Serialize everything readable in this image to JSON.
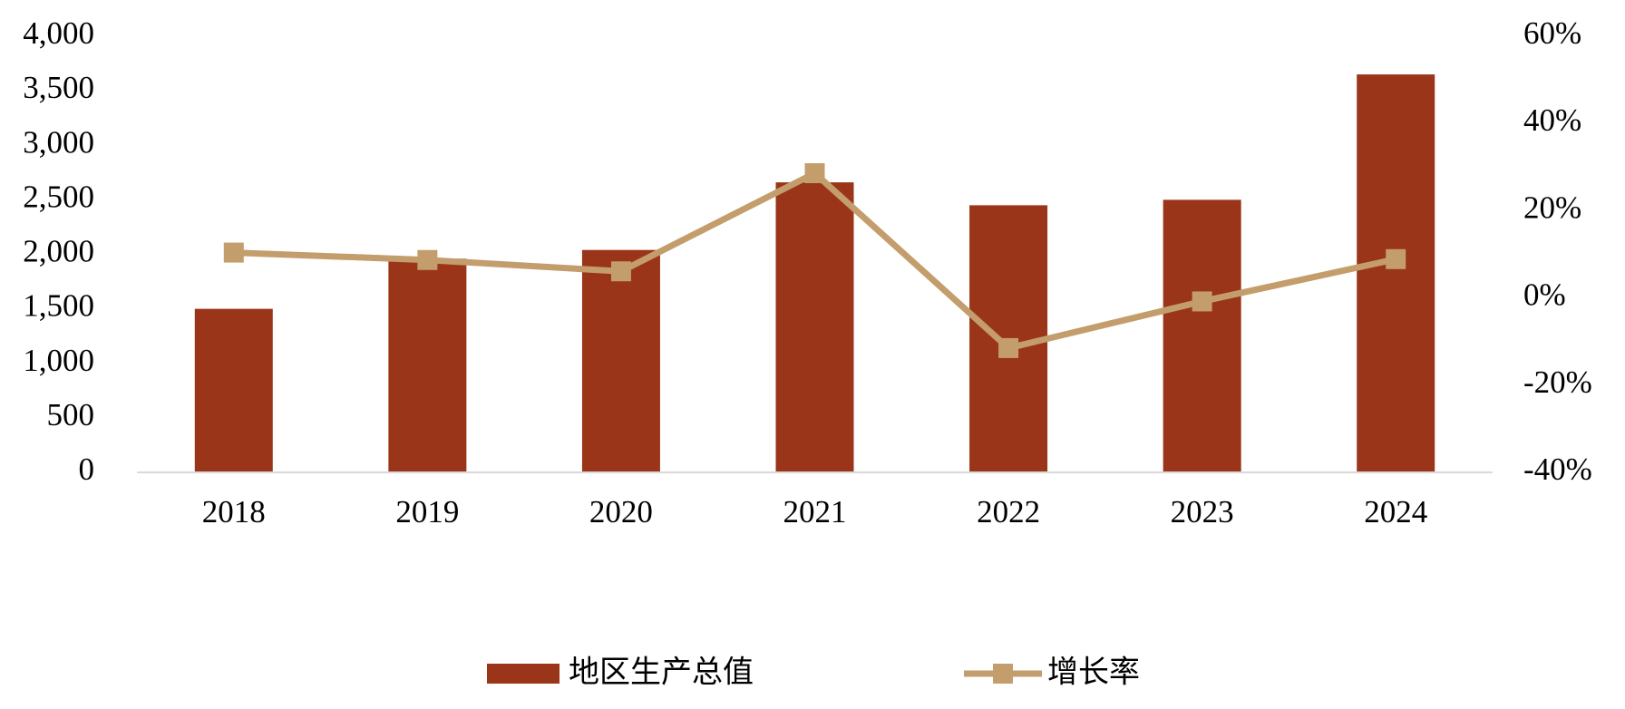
{
  "chart_data": {
    "type": "bar_line",
    "categories": [
      "2018",
      "2019",
      "2020",
      "2021",
      "2022",
      "2023",
      "2024"
    ],
    "series": [
      {
        "name": "地区生产总值",
        "type": "bar",
        "color": "#9a3519",
        "values": [
          1500,
          1960,
          2040,
          2660,
          2450,
          2500,
          3650
        ]
      },
      {
        "name": "增长率",
        "type": "line",
        "axis": "y2",
        "color": "#c49d6c",
        "marker": "square",
        "values": [
          10.4,
          8.7,
          6.1,
          28.6,
          -11.5,
          -0.8,
          8.9
        ]
      }
    ],
    "ylim": [
      0,
      4000
    ],
    "yticks": [
      0,
      500,
      {
        "value": 1000,
        "label": "1,000"
      },
      {
        "value": 1500,
        "label": "1,500"
      },
      {
        "value": 2000,
        "label": "2,000"
      },
      {
        "value": 2500,
        "label": "2,500"
      },
      {
        "value": 3000,
        "label": "3,000"
      },
      {
        "value": 3500,
        "label": "3,500"
      },
      {
        "value": 4000,
        "label": "4,000"
      }
    ],
    "y2lim": [
      -40,
      60
    ],
    "y2ticks": [
      {
        "value": -40,
        "label": "-40%"
      },
      {
        "value": -20,
        "label": "-20%"
      },
      {
        "value": 0,
        "label": "0%"
      },
      {
        "value": 20,
        "label": "20%"
      },
      {
        "value": 40,
        "label": "40%"
      },
      {
        "value": 60,
        "label": "60%"
      }
    ],
    "legend": "bottom"
  }
}
